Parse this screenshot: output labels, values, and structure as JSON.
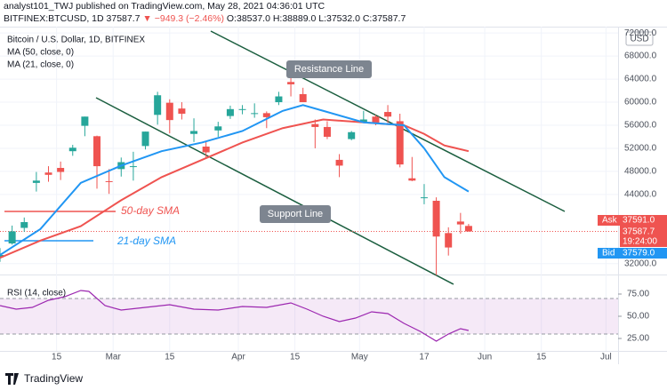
{
  "header": {
    "published": "analyst101_TWJ published on TradingView.com, May 28, 2021 04:36:01 UTC",
    "symbol": "BITFINEX:BTCUSD, 1D",
    "last": "37587.7",
    "change": "▼ −949.3 (−2.46%)",
    "ohlc": "O:38537.0 H:38889.0 L:37532.0 C:37587.7"
  },
  "footer": "TradingView",
  "chart_data": {
    "type": "candlestick",
    "legend": [
      "Bitcoin / U.S. Dollar, 1D, BITFINEX",
      "MA (50, close, 0)",
      "MA (21, close, 0)"
    ],
    "currency": "USD",
    "up_color": "#26a69a",
    "down_color": "#ef5350",
    "x": [
      0,
      3,
      6,
      9,
      12,
      15,
      18,
      21,
      24,
      27,
      30,
      33,
      36,
      39,
      42,
      45,
      48,
      51,
      54,
      57,
      60,
      63,
      66,
      69,
      72,
      75,
      78,
      81,
      84,
      87,
      90,
      93,
      96,
      99,
      102,
      105,
      108,
      111,
      114,
      116
    ],
    "ohlc": [
      [
        33100,
        34700,
        32300,
        33500
      ],
      [
        35500,
        38600,
        35300,
        37600
      ],
      [
        38200,
        40000,
        37500,
        39200
      ],
      [
        46000,
        47900,
        44500,
        46400
      ],
      [
        47800,
        48900,
        46200,
        47400
      ],
      [
        48600,
        49700,
        46500,
        47900
      ],
      [
        51500,
        52600,
        50700,
        52100
      ],
      [
        55900,
        57500,
        54100,
        57500
      ],
      [
        54100,
        54200,
        45000,
        48900
      ],
      [
        46300,
        48400,
        44100,
        46200
      ],
      [
        48400,
        50400,
        47100,
        49600
      ],
      [
        48900,
        51400,
        46400,
        48900
      ],
      [
        52400,
        54900,
        51800,
        54900
      ],
      [
        57800,
        61800,
        56100,
        61200
      ],
      [
        59900,
        60500,
        54600,
        56900
      ],
      [
        58900,
        60000,
        57000,
        58000
      ],
      [
        54500,
        57200,
        53100,
        55000
      ],
      [
        52300,
        53200,
        50400,
        51300
      ],
      [
        55100,
        56600,
        54000,
        55800
      ],
      [
        57600,
        59400,
        57100,
        58800
      ],
      [
        58700,
        59500,
        57900,
        58800
      ],
      [
        58000,
        59800,
        57300,
        58100
      ],
      [
        58100,
        58400,
        55500,
        57400
      ],
      [
        60000,
        61800,
        59500,
        61000
      ],
      [
        63500,
        64900,
        61000,
        63100
      ],
      [
        61400,
        62500,
        60000,
        60000
      ],
      [
        56200,
        57000,
        52000,
        55700
      ],
      [
        55700,
        56700,
        53600,
        54000
      ],
      [
        50000,
        51000,
        47000,
        49000
      ],
      [
        53600,
        55000,
        53400,
        54800
      ],
      [
        56600,
        58500,
        56500,
        57000
      ],
      [
        57500,
        57800,
        56000,
        56400
      ],
      [
        58300,
        59500,
        56400,
        57500
      ],
      [
        56700,
        58000,
        48700,
        49200
      ],
      [
        46800,
        50500,
        46300,
        46400
      ],
      [
        43500,
        45800,
        42300,
        43500
      ],
      [
        42900,
        43500,
        30000,
        36700
      ],
      [
        37300,
        38300,
        33400,
        34800
      ],
      [
        39300,
        40800,
        37200,
        38800
      ],
      [
        38537,
        38889,
        37532,
        37587.7
      ]
    ],
    "series": [
      {
        "name": "50-day SMA",
        "color": "#ef5350",
        "x": [
          0,
          10,
          20,
          30,
          40,
          50,
          60,
          70,
          80,
          90,
          100,
          105,
          110,
          116
        ],
        "values": [
          33000,
          36000,
          38500,
          43000,
          47000,
          50000,
          53000,
          55500,
          57000,
          56500,
          56000,
          54500,
          52500,
          51500
        ]
      },
      {
        "name": "21-day SMA",
        "color": "#2196f3",
        "x": [
          0,
          10,
          20,
          30,
          40,
          50,
          60,
          70,
          75,
          80,
          90,
          100,
          105,
          110,
          116
        ],
        "values": [
          33500,
          38000,
          46000,
          49000,
          51500,
          53000,
          55000,
          58500,
          59500,
          58500,
          56500,
          56000,
          52000,
          47000,
          44500
        ]
      }
    ],
    "annotations": [
      "Resistance Line",
      "Support Line"
    ],
    "price_labels": {
      "ask_title": "Ask",
      "ask": "37591.0",
      "last": "37587.7",
      "countdown": "19:24:00",
      "bid_title": "Bid",
      "bid": "37579.0"
    },
    "last_price": 37587.7,
    "xlim": [
      0,
      153
    ],
    "xticks": [
      {
        "value": 14,
        "label": "15"
      },
      {
        "value": 28,
        "label": "Mar"
      },
      {
        "value": 42,
        "label": "15"
      },
      {
        "value": 59,
        "label": "Apr"
      },
      {
        "value": 73,
        "label": "15"
      },
      {
        "value": 89,
        "label": "May"
      },
      {
        "value": 105,
        "label": "17"
      },
      {
        "value": 120,
        "label": "Jun"
      },
      {
        "value": 134,
        "label": "15"
      },
      {
        "value": 150,
        "label": "Jul"
      }
    ],
    "ylim": [
      31500,
      73100
    ],
    "yticks": [
      {
        "value": 32000,
        "label": "32000.0"
      },
      {
        "value": 44000,
        "label": "44000.0"
      },
      {
        "value": 48000,
        "label": "48000.0"
      },
      {
        "value": 52000,
        "label": "52000.0"
      },
      {
        "value": 56000,
        "label": "56000.0"
      },
      {
        "value": 60000,
        "label": "60000.0"
      },
      {
        "value": 64000,
        "label": "64000.0"
      },
      {
        "value": 68000,
        "label": "68000.0"
      },
      {
        "value": 72000,
        "label": "72000.0"
      }
    ],
    "rsi": {
      "name": "RSI (14, close)",
      "color": "#9c27b0",
      "band": [
        30,
        70
      ],
      "x": [
        0,
        4,
        8,
        12,
        16,
        20,
        22,
        26,
        30,
        36,
        42,
        48,
        54,
        60,
        66,
        72,
        76,
        80,
        84,
        88,
        92,
        96,
        100,
        104,
        108,
        111,
        114,
        116
      ],
      "values": [
        62,
        58,
        60,
        68,
        72,
        79,
        78,
        62,
        57,
        60,
        63,
        58,
        57,
        61,
        60,
        65,
        58,
        50,
        44,
        48,
        55,
        53,
        42,
        33,
        22,
        30,
        36,
        34
      ],
      "ylim": [
        11,
        88
      ],
      "yticks": [
        {
          "value": 25,
          "label": "25.00"
        },
        {
          "value": 50,
          "label": "50.00"
        },
        {
          "value": 75,
          "label": "75.00"
        }
      ]
    }
  }
}
